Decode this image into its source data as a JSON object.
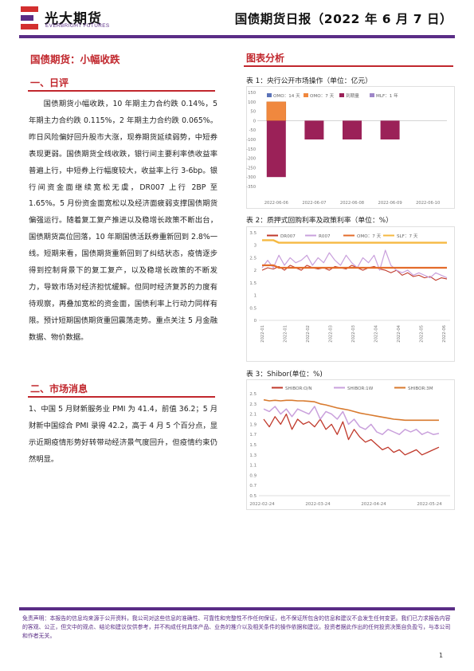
{
  "header": {
    "logo_cn": "光大期货",
    "logo_en": "EVERBRIGHT FUTURES",
    "report_title": "国债期货日报（2022 年 6 月 7 日）"
  },
  "left": {
    "main_title": "国债期货：小幅收跌",
    "section1_title": "一、日评",
    "commentary": [
      "国债期货小幅收跌，10 年期主力合约跌 0.14%，5 年期主力合约跌 0.115%，2 年期主力合约跌 0.065%。昨日风险偏好回升股市大涨，现券期货延续弱势，中短券表现更弱。国债期货全线收跌，银行间主要利率债收益率普遍上行，中短券上行幅度较大，收益率上行 3-6bp。银行间资金面继续宽松无虞，DR007 上行 2BP 至 1.65%。5 月份资金面宽松以及经济面疲弱支撑国债期货偏强运行。随着复工复产推进以及稳增长政策不断出台，国债期货高位回落，10 年期国债活跃券重新回到 2.8%一线。短期来看，国债期货重新回到了纠结状态，疫情逐步得到控制背景下的复工复产，以及稳增长政策的不断发力，导致市场对经济担忧缓解。但同时经济复苏的力度有待观察，再叠加宽松的资金面，国债利率上行动力同样有限。预计短期国债期货重回震荡走势。重点关注 5 月金融数据、物价数据。"
    ],
    "section2_title": "二、市场消息",
    "news": "1、中国 5 月财新服务业 PMI 为 41.4，前值 36.2；5 月财新中国综合 PMI 录得 42.2，高于 4 月 5 个百分点，显示近期疫情形势好转带动经济景气度回升，但疫情约束仍然明显。"
  },
  "right": {
    "section_title": "图表分析"
  },
  "charts": {
    "chart1": {
      "caption": "表 1：央行公开市场操作（单位：亿元）",
      "legend": [
        "OMO：14 天",
        "OMO：7 天",
        "到期量",
        "MLF：1 年"
      ],
      "yticks": [
        "150",
        "100",
        "50",
        "0",
        "-50",
        "-100",
        "-150",
        "-200",
        "-250",
        "-300",
        "-350"
      ],
      "xticks": [
        "2022-06-06",
        "2022-06-07",
        "2022-06-08",
        "2022-06-09",
        "2022-06-10"
      ]
    },
    "chart2": {
      "caption": "表 2：质押式回购利率及政策利率（单位：%）",
      "legend": [
        "DR007",
        "R007",
        "OMO：7 天",
        "SLF：7 天"
      ],
      "yticks": [
        "3.5",
        "3",
        "2.5",
        "2",
        "1.5",
        "1",
        "0.5",
        "0"
      ],
      "xticks": [
        "2022-01",
        "2022-01",
        "2022-02",
        "2022-03",
        "2022-03",
        "2022-04",
        "2022-04",
        "2022-05",
        "2022-06"
      ]
    },
    "chart3": {
      "caption": "表 3：Shibor(单位：%)",
      "legend": [
        "SHIBOR:O/N",
        "SHIBOR:1W",
        "SHIBOR:3M"
      ],
      "yticks": [
        "2.5",
        "2.3",
        "2.1",
        "1.9",
        "1.7",
        "1.5",
        "1.3",
        "1.1",
        "0.9",
        "0.7",
        "0.5"
      ],
      "xticks": [
        "2022-02-24",
        "2022-03-24",
        "2022-04-24",
        "2022-05-24"
      ]
    }
  },
  "chart_data": [
    {
      "type": "bar",
      "categories": [
        "2022-06-06",
        "2022-06-07",
        "2022-06-08",
        "2022-06-09",
        "2022-06-10"
      ],
      "series": [
        {
          "name": "OMO：14 天",
          "values": [
            0,
            0,
            0,
            0,
            0
          ]
        },
        {
          "name": "OMO：7 天",
          "values": [
            100,
            0,
            0,
            0,
            0
          ]
        },
        {
          "name": "到期量",
          "values": [
            -300,
            -100,
            -100,
            -100,
            0
          ]
        },
        {
          "name": "MLF：1 年",
          "values": [
            0,
            0,
            0,
            0,
            0
          ]
        }
      ],
      "ylim": [
        -350,
        150
      ]
    },
    {
      "type": "line",
      "series": [
        {
          "name": "DR007",
          "values": [
            2.0,
            2.1,
            2.05,
            2.15,
            2.0,
            2.2,
            2.1,
            2.0,
            2.2,
            2.1,
            2.05,
            2.1,
            2.0,
            2.15,
            2.1,
            2.05,
            2.2,
            2.1,
            2.0,
            2.1,
            2.15,
            2.05,
            2.0,
            1.9,
            2.0,
            1.8,
            1.9,
            1.75,
            1.8,
            1.7,
            1.75,
            1.6,
            1.7,
            1.65
          ]
        },
        {
          "name": "R007",
          "values": [
            2.1,
            2.4,
            2.1,
            2.6,
            2.2,
            2.5,
            2.3,
            2.4,
            2.6,
            2.2,
            2.5,
            2.3,
            2.7,
            2.4,
            2.2,
            2.6,
            2.3,
            2.1,
            2.5,
            2.3,
            2.6,
            2.0,
            2.8,
            2.2,
            2.0,
            1.9,
            2.0,
            1.8,
            1.9,
            1.8,
            1.7,
            1.9,
            1.8,
            1.7
          ]
        },
        {
          "name": "OMO：7 天",
          "values": [
            2.2,
            2.2,
            2.2,
            2.1,
            2.1,
            2.1,
            2.1,
            2.1,
            2.1,
            2.1,
            2.1,
            2.1,
            2.1,
            2.1,
            2.1,
            2.1,
            2.1,
            2.1,
            2.1,
            2.1,
            2.1,
            2.1,
            2.1,
            2.1,
            2.1,
            2.1,
            2.1,
            2.1,
            2.1,
            2.1,
            2.1,
            2.1,
            2.1,
            2.1
          ]
        },
        {
          "name": "SLF：7 天",
          "values": [
            3.2,
            3.2,
            3.2,
            3.1,
            3.1,
            3.1,
            3.1,
            3.1,
            3.1,
            3.1,
            3.1,
            3.1,
            3.1,
            3.1,
            3.1,
            3.1,
            3.1,
            3.1,
            3.1,
            3.1,
            3.1,
            3.1,
            3.1,
            3.1,
            3.1,
            3.1,
            3.1,
            3.1,
            3.1,
            3.1,
            3.1,
            3.1,
            3.1,
            3.1
          ]
        }
      ],
      "ylim": [
        0,
        3.5
      ]
    },
    {
      "type": "line",
      "series": [
        {
          "name": "SHIBOR:O/N",
          "values": [
            2.0,
            1.85,
            2.05,
            1.9,
            2.1,
            1.8,
            2.0,
            1.9,
            1.95,
            1.85,
            2.0,
            1.8,
            1.9,
            1.7,
            1.95,
            1.6,
            1.8,
            1.65,
            1.55,
            1.6,
            1.5,
            1.4,
            1.45,
            1.35,
            1.4,
            1.3,
            1.35,
            1.4,
            1.3,
            1.35,
            1.4,
            1.45
          ]
        },
        {
          "name": "SHIBOR:1W",
          "values": [
            2.2,
            2.15,
            2.25,
            2.1,
            2.2,
            2.05,
            2.2,
            2.15,
            2.1,
            2.25,
            2.0,
            2.15,
            2.1,
            2.0,
            2.15,
            1.9,
            2.0,
            1.85,
            1.8,
            1.9,
            1.75,
            1.7,
            1.8,
            1.75,
            1.7,
            1.8,
            1.75,
            1.8,
            1.7,
            1.75,
            1.7,
            1.72
          ]
        },
        {
          "name": "SHIBOR:3M",
          "values": [
            2.38,
            2.36,
            2.37,
            2.36,
            2.37,
            2.37,
            2.36,
            2.36,
            2.35,
            2.34,
            2.3,
            2.28,
            2.25,
            2.22,
            2.2,
            2.18,
            2.15,
            2.12,
            2.1,
            2.08,
            2.06,
            2.04,
            2.02,
            2.0,
            1.99,
            1.98,
            1.98,
            1.98,
            1.98,
            1.98,
            1.98,
            1.98
          ]
        }
      ],
      "ylim": [
        0.5,
        2.5
      ]
    }
  ],
  "footer": {
    "disclaimer": "免责声明：本报告的信息均来源于公开资料，我公司对这些信息的准确性、可靠性和完整性不作任何保证，也不保证所包含的信息和建议不会发生任何变更。我们已力求报告内容的客观、公正，但文中的观点、结论和建议仅供参考，并不构成任何具体产品、业务的推介以及相关条件的操作依据和建议。投资者据此作出的任何投资决策自负盈亏，与本公司和作者无关。",
    "page": "1"
  },
  "colors": {
    "brand_purple": "#5a2d86",
    "accent_red": "#c1272d",
    "bar_maroon": "#9b2158",
    "bar_orange": "#f0883e"
  }
}
